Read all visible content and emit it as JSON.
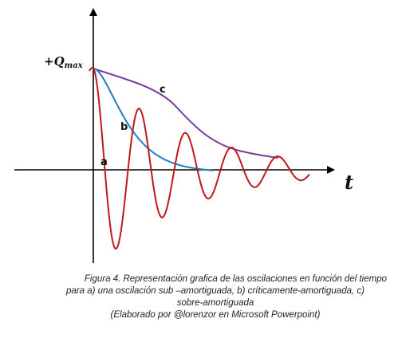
{
  "labels": {
    "qmax": "+Q",
    "qmax_sub": "max",
    "time": "t",
    "curve_a": "a",
    "curve_b": "b",
    "curve_c": "c"
  },
  "colors": {
    "under_damped": "#c0171c",
    "critically_damped": "#1f7fc0",
    "over_damped": "#7a3b9c",
    "axes": "#000000"
  },
  "caption": {
    "line1": "Figura 4. Representación grafica de las oscilaciones en función del tiempo",
    "line2": "para a) una oscilación sub –amortiguada, b) críticamente-amortiguada, c)",
    "line3": "sobre-amortiguada",
    "line4": "(Elaborado por @lorenzor en Microsoft Powerpoint)"
  }
}
